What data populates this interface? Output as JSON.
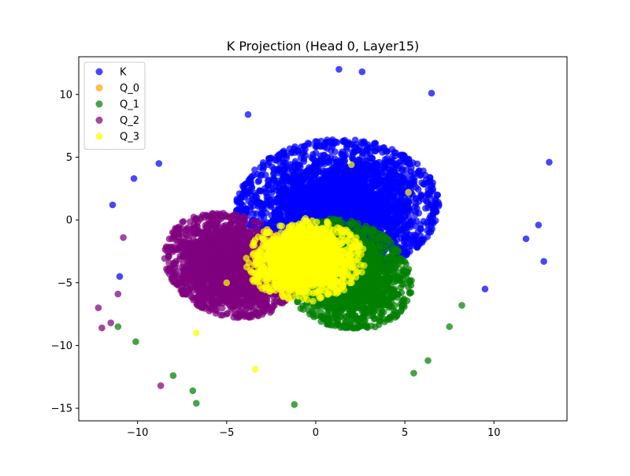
{
  "chart_data": {
    "type": "scatter",
    "title": "K Projection (Head 0, Layer15)",
    "xlabel": "",
    "ylabel": "",
    "xlim": [
      -13.3,
      14.1
    ],
    "ylim": [
      -16.0,
      13.0
    ],
    "xticks": [
      -10,
      -5,
      0,
      5,
      10
    ],
    "yticks": [
      -15,
      -10,
      -5,
      0,
      5,
      10
    ],
    "grid": false,
    "legend_position": "top-left",
    "series": [
      {
        "name": "K",
        "color": "#0000ff",
        "clouds": [
          {
            "cx": 1.2,
            "cy": 1.0,
            "rx": 11.5,
            "ry": 10.8,
            "angle": 18,
            "count": 3200,
            "spread": 0.45
          }
        ],
        "outliers": [
          [
            13.1,
            4.6
          ],
          [
            12.8,
            -3.3
          ],
          [
            12.5,
            -0.4
          ],
          [
            -11.4,
            1.2
          ],
          [
            -10.2,
            3.3
          ],
          [
            -8.8,
            4.5
          ],
          [
            2.6,
            11.8
          ],
          [
            1.3,
            12.0
          ],
          [
            11.8,
            -1.5
          ],
          [
            9.5,
            -5.5
          ],
          [
            -11.0,
            -4.5
          ],
          [
            6.5,
            10.1
          ],
          [
            -3.8,
            8.4
          ]
        ]
      },
      {
        "name": "Q_0",
        "color": "#ffa500",
        "clouds": [],
        "outliers": []
      },
      {
        "name": "Q_1",
        "color": "#008000",
        "clouds": [
          {
            "cx": 1.6,
            "cy": -4.3,
            "rx": 7.2,
            "ry": 9.2,
            "angle": 25,
            "count": 2200,
            "spread": 0.42
          }
        ],
        "outliers": [
          [
            -1.2,
            -14.7
          ],
          [
            -6.7,
            -14.6
          ],
          [
            -8.0,
            -12.4
          ],
          [
            -6.9,
            -13.6
          ],
          [
            5.5,
            -12.2
          ],
          [
            6.3,
            -11.2
          ],
          [
            -10.1,
            -9.7
          ],
          [
            -11.1,
            -8.5
          ],
          [
            7.5,
            -8.5
          ],
          [
            8.2,
            -6.8
          ]
        ]
      },
      {
        "name": "Q_2",
        "color": "#800080",
        "clouds": [
          {
            "cx": -4.8,
            "cy": -3.6,
            "rx": 7.0,
            "ry": 8.8,
            "angle": 28,
            "count": 2200,
            "spread": 0.43
          }
        ],
        "outliers": [
          [
            -8.7,
            -13.2
          ],
          [
            -12.2,
            -7.0
          ],
          [
            -11.1,
            -5.9
          ],
          [
            -11.5,
            -8.2
          ],
          [
            -12.0,
            -8.6
          ],
          [
            -10.8,
            -1.4
          ]
        ]
      },
      {
        "name": "Q_3",
        "color": "#ffff00",
        "clouds": [
          {
            "cx": -0.6,
            "cy": -3.2,
            "rx": 6.8,
            "ry": 6.6,
            "angle": 40,
            "count": 2000,
            "spread": 0.36
          }
        ],
        "outliers": [
          [
            -3.4,
            -11.9
          ],
          [
            -6.7,
            -9.0
          ],
          [
            2.0,
            4.4
          ],
          [
            5.2,
            2.2
          ],
          [
            -5.0,
            -5.0
          ]
        ]
      }
    ]
  }
}
